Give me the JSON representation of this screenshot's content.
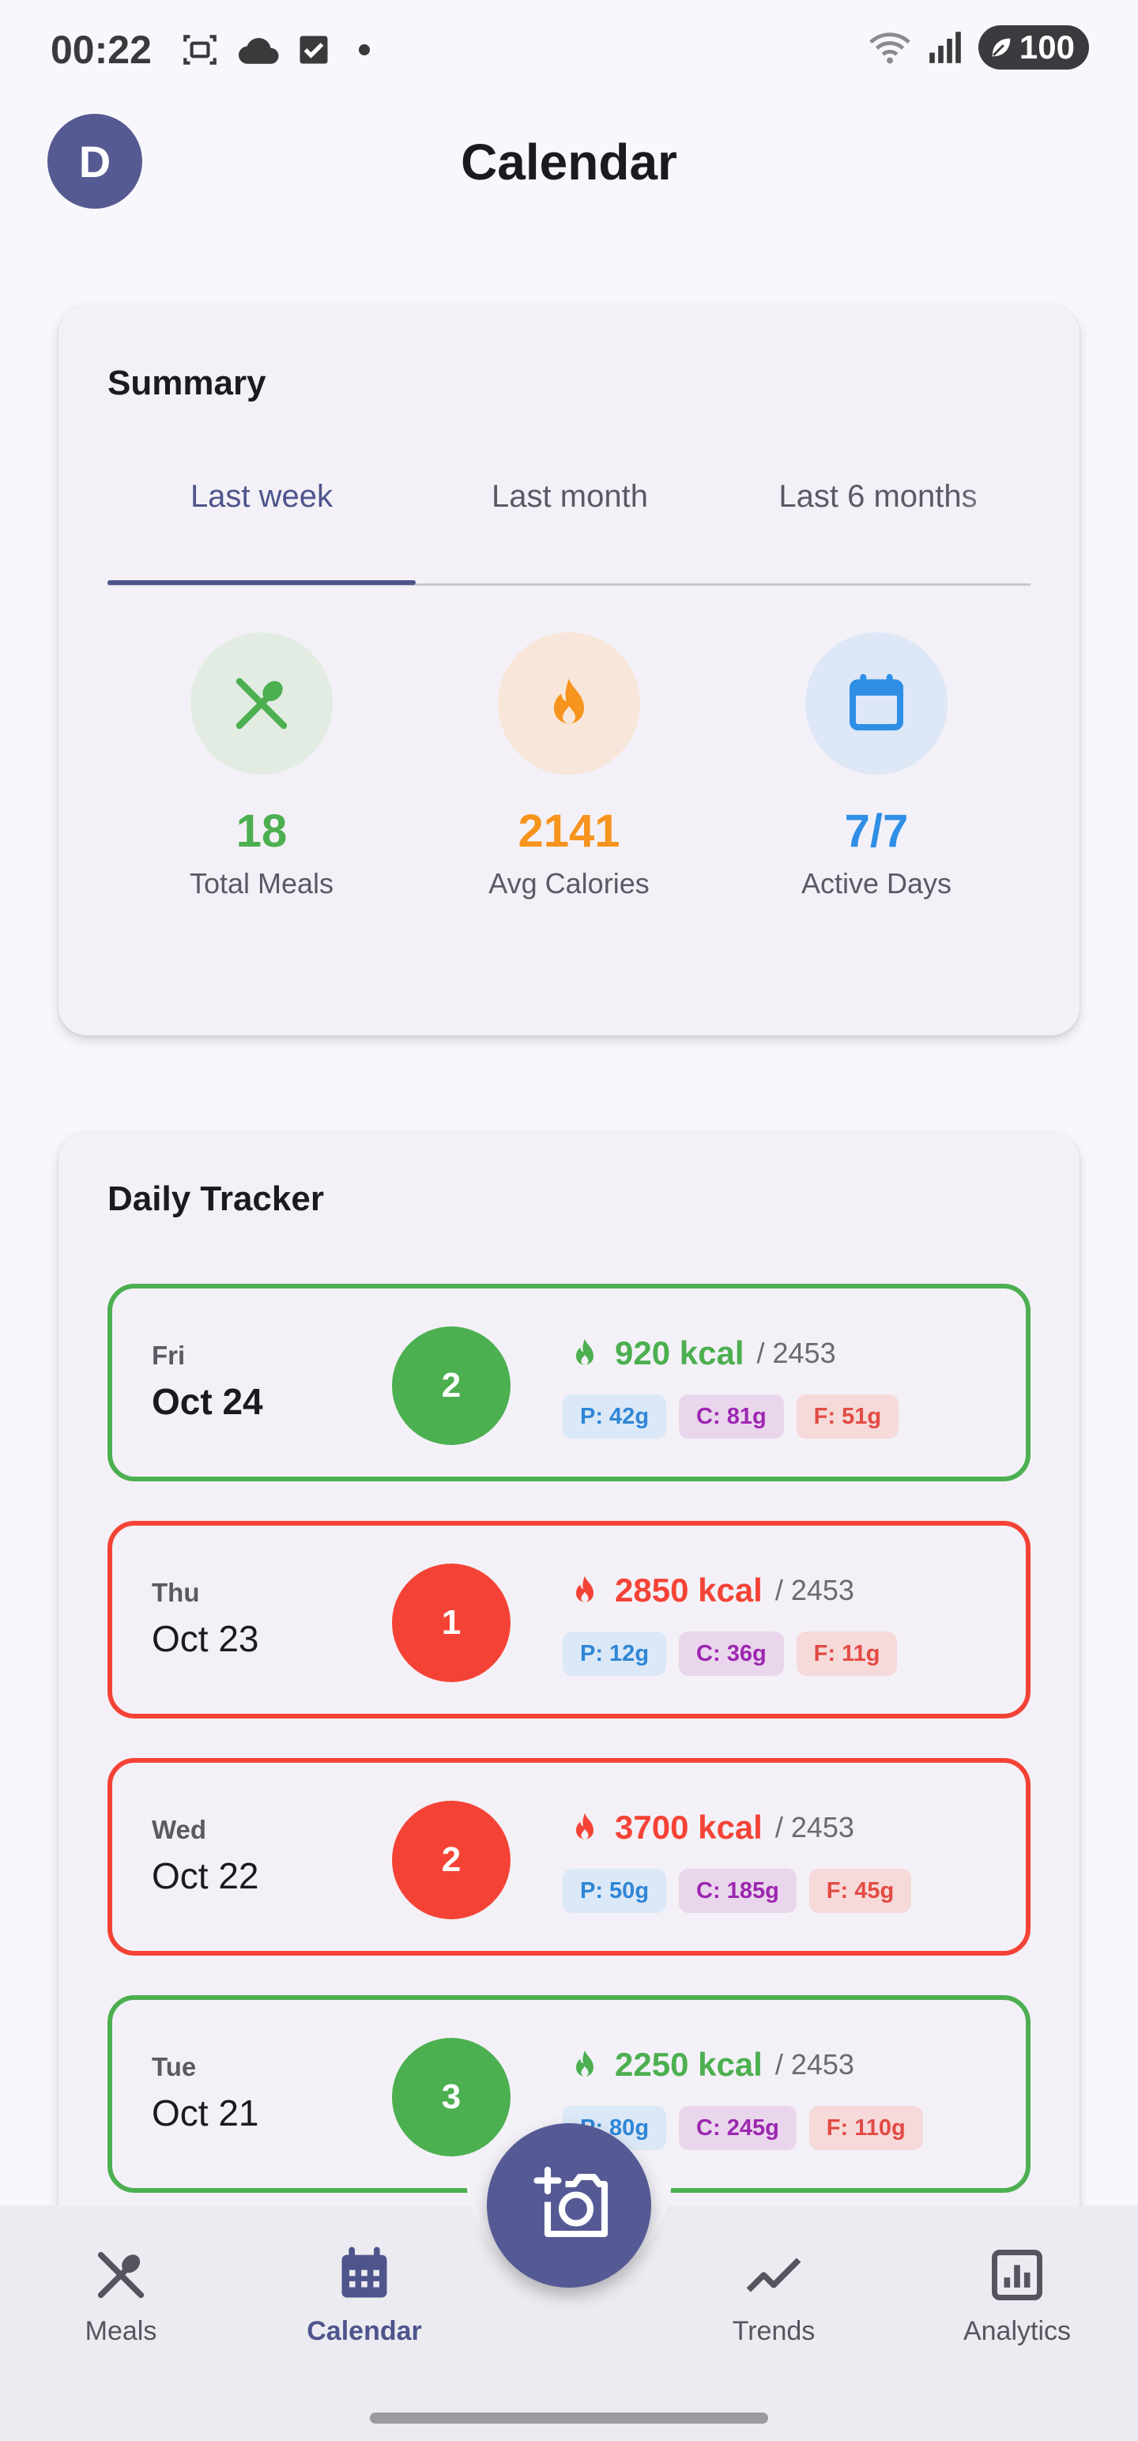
{
  "status_bar": {
    "time": "00:22",
    "battery": "100"
  },
  "header": {
    "avatar_initial": "D",
    "title": "Calendar"
  },
  "summary": {
    "title": "Summary",
    "tabs": [
      {
        "label": "Last week",
        "active": true
      },
      {
        "label": "Last month",
        "active": false
      },
      {
        "label": "Last 6 months",
        "active": false
      }
    ],
    "stats": [
      {
        "value": "18",
        "label": "Total Meals",
        "icon": "utensils-icon",
        "color": "#4caf50",
        "bg": "#e2ece3"
      },
      {
        "value": "2141",
        "label": "Avg Calories",
        "icon": "flame-icon",
        "color": "#f7941d",
        "bg": "#f8e6da"
      },
      {
        "value": "7/7",
        "label": "Active Days",
        "icon": "calendar-icon",
        "color": "#2f8ee6",
        "bg": "#dde7f6"
      }
    ]
  },
  "tracker": {
    "title": "Daily Tracker",
    "days": [
      {
        "dow": "Fri",
        "date": "Oct 24",
        "meals": "2",
        "kcal": "920 kcal",
        "target": "/ 2453",
        "protein": "P: 42g",
        "carbs": "C: 81g",
        "fat": "F: 51g",
        "status": "green",
        "today": true
      },
      {
        "dow": "Thu",
        "date": "Oct 23",
        "meals": "1",
        "kcal": "2850 kcal",
        "target": "/ 2453",
        "protein": "P: 12g",
        "carbs": "C: 36g",
        "fat": "F: 11g",
        "status": "red",
        "today": false
      },
      {
        "dow": "Wed",
        "date": "Oct 22",
        "meals": "2",
        "kcal": "3700 kcal",
        "target": "/ 2453",
        "protein": "P: 50g",
        "carbs": "C: 185g",
        "fat": "F: 45g",
        "status": "red",
        "today": false
      },
      {
        "dow": "Tue",
        "date": "Oct 21",
        "meals": "3",
        "kcal": "2250 kcal",
        "target": "/ 2453",
        "protein": "P: 80g",
        "carbs": "C: 245g",
        "fat": "F: 110g",
        "status": "green",
        "today": false
      }
    ]
  },
  "colors": {
    "primary": "#4e548c",
    "green": "#4caf50",
    "red": "#f44336"
  },
  "bottom_nav": {
    "items": [
      {
        "label": "Meals",
        "icon": "utensils-icon",
        "active": false
      },
      {
        "label": "Calendar",
        "icon": "calendar-icon",
        "active": true
      },
      {
        "label": "Trends",
        "icon": "trend-line-icon",
        "active": false
      },
      {
        "label": "Analytics",
        "icon": "bar-chart-icon",
        "active": false
      }
    ],
    "fab_icon": "add-photo-camera-icon"
  }
}
